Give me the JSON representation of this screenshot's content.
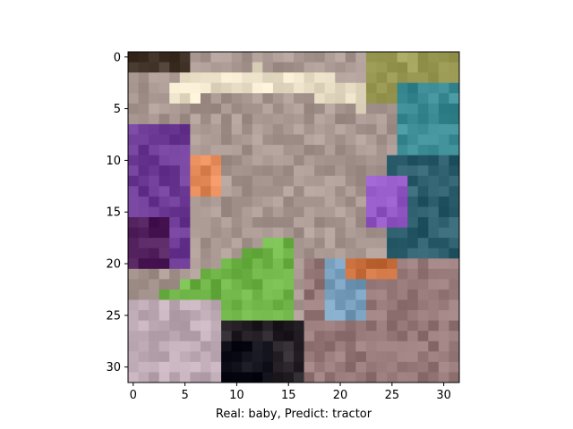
{
  "figure": {
    "xlabel": "Real: baby, Predict: tractor"
  },
  "image": {
    "grid": 32,
    "xticks": [
      0,
      5,
      10,
      15,
      20,
      25,
      30
    ],
    "yticks": [
      0,
      5,
      10,
      15,
      20,
      25,
      30
    ],
    "content": "pixelated low-resolution photo of a baby"
  }
}
